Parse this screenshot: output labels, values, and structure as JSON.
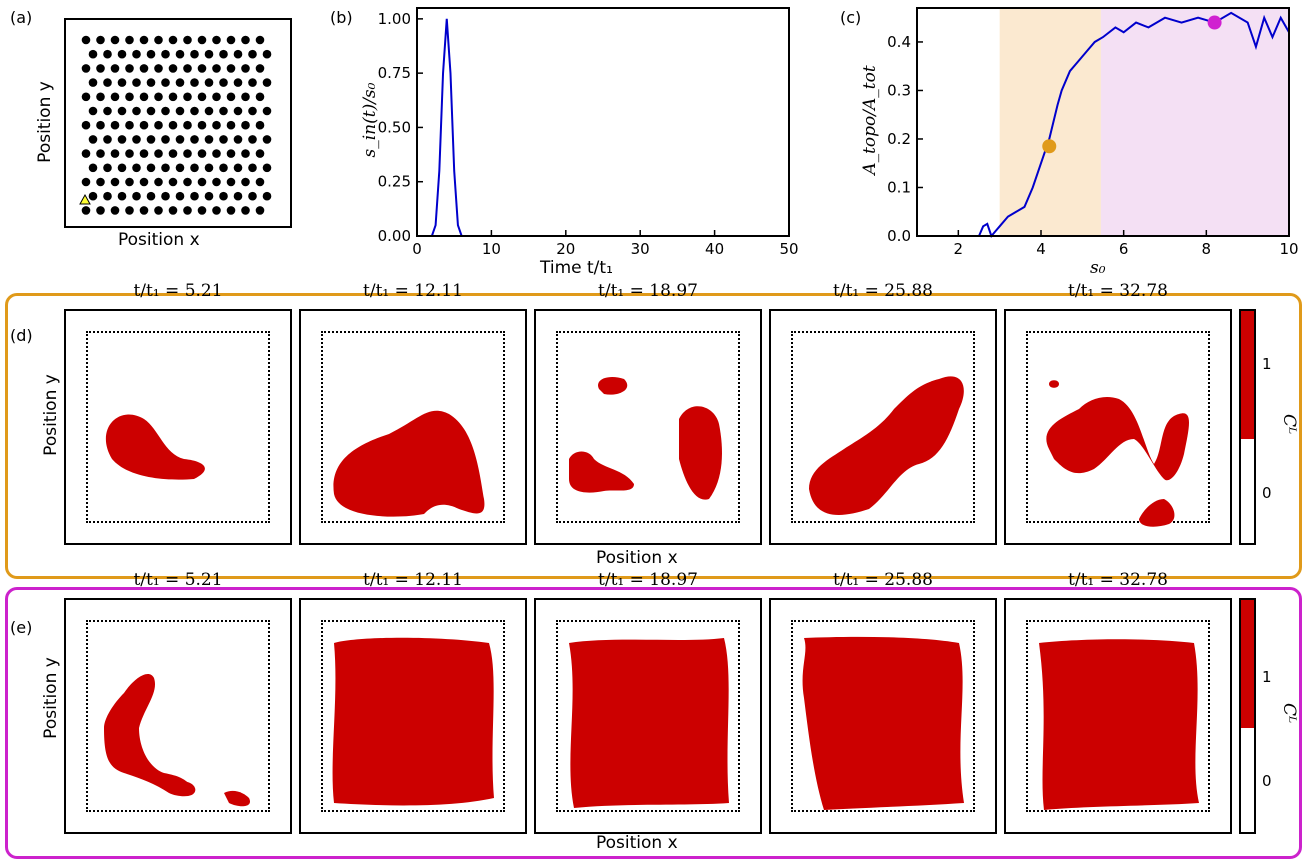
{
  "panel_labels": {
    "a": "(a)",
    "b": "(b)",
    "c": "(c)",
    "d": "(d)",
    "e": "(e)"
  },
  "panel_a": {
    "xlabel": "Position x",
    "ylabel": "Position y",
    "marker_color": "#ffff33",
    "lattice_rows": 13,
    "lattice_cols": 13
  },
  "panel_b": {
    "xlabel": "Time t/t₁",
    "ylabel": "s_in(t)/s₀",
    "line_color": "#0000cc",
    "chart_data": {
      "type": "line",
      "x_ticks": [
        "0",
        "10",
        "20",
        "30",
        "40",
        "50"
      ],
      "y_ticks": [
        "0.00",
        "0.25",
        "0.50",
        "0.75",
        "1.00"
      ],
      "xlim": [
        0,
        50
      ],
      "ylim": [
        0,
        1.05
      ],
      "series": [
        {
          "x": [
            0,
            2,
            2.5,
            3,
            3.5,
            4,
            4.5,
            5,
            5.5,
            6,
            50
          ],
          "y": [
            0,
            0,
            0.05,
            0.3,
            0.75,
            1.0,
            0.75,
            0.3,
            0.05,
            0,
            0
          ]
        }
      ]
    }
  },
  "panel_c": {
    "xlabel": "s₀",
    "ylabel": "A_topo/A_tot",
    "line_color": "#0000cc",
    "region1_color": "#fbe9d0",
    "region2_color": "#f4e0f4",
    "marker1_color": "#e09a1a",
    "marker2_color": "#d020d0",
    "chart_data": {
      "type": "line",
      "x_ticks": [
        "2",
        "4",
        "6",
        "8",
        "10"
      ],
      "y_ticks": [
        "0.0",
        "0.1",
        "0.2",
        "0.3",
        "0.4"
      ],
      "xlim": [
        1,
        10
      ],
      "ylim": [
        0,
        0.47
      ],
      "shaded_regions": [
        [
          3.0,
          5.45
        ],
        [
          5.45,
          10
        ]
      ],
      "series": [
        {
          "x": [
            1,
            2.5,
            2.6,
            2.7,
            2.8,
            2.9,
            3.0,
            3.2,
            3.4,
            3.6,
            3.8,
            4.0,
            4.2,
            4.4,
            4.5,
            4.7,
            4.9,
            5.1,
            5.3,
            5.5,
            5.8,
            6.0,
            6.3,
            6.6,
            7.0,
            7.4,
            7.8,
            8.2,
            8.6,
            9.0,
            9.2,
            9.4,
            9.6,
            9.8,
            10.0
          ],
          "y": [
            0,
            0,
            0.02,
            0.025,
            0.0,
            0.01,
            0.02,
            0.04,
            0.05,
            0.06,
            0.1,
            0.15,
            0.2,
            0.27,
            0.3,
            0.34,
            0.36,
            0.38,
            0.4,
            0.41,
            0.43,
            0.42,
            0.44,
            0.43,
            0.45,
            0.44,
            0.45,
            0.44,
            0.46,
            0.44,
            0.39,
            0.45,
            0.41,
            0.45,
            0.42
          ]
        }
      ],
      "points": [
        {
          "x": 4.2,
          "y": 0.185
        },
        {
          "x": 8.2,
          "y": 0.44
        }
      ]
    }
  },
  "row_d": {
    "border_color": "#e09a1a",
    "titles": [
      "t/t₁ = 5.21",
      "t/t₁ = 12.11",
      "t/t₁ = 18.97",
      "t/t₁ = 25.88",
      "t/t₁ = 32.78"
    ],
    "xlabel": "Position x",
    "ylabel": "Position y"
  },
  "row_e": {
    "border_color": "#cc22cc",
    "titles": [
      "t/t₁ = 5.21",
      "t/t₁ = 12.11",
      "t/t₁ = 18.97",
      "t/t₁ = 25.88",
      "t/t₁ = 32.78"
    ],
    "xlabel": "Position x",
    "ylabel": "Position y"
  },
  "colorbar": {
    "label": "Cᴸ",
    "ticks": [
      "1",
      "0"
    ],
    "fill_color": "#cc0000"
  }
}
